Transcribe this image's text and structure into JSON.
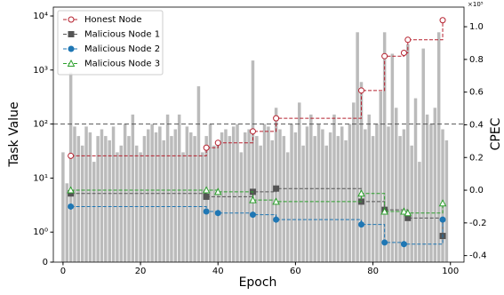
{
  "chart_data": {
    "type": "bar-line-dual",
    "x_label": "Epoch",
    "y_label": "Task Value",
    "y2_label": "CPEC",
    "y2_multiplier": "×10⁵",
    "xlim": [
      -2.5,
      103.5
    ],
    "xticks": [
      0,
      20,
      40,
      60,
      80,
      100
    ],
    "yscale": "symlog",
    "linthresh": 1,
    "linscale": 0.5,
    "ylim": [
      0,
      14600
    ],
    "yticks": [
      0,
      {
        "value": 1,
        "label": "10⁰"
      },
      {
        "value": 10,
        "label": "10¹"
      },
      {
        "value": 100,
        "label": "10²"
      },
      {
        "value": 1000,
        "label": "10³"
      },
      {
        "value": 10000,
        "label": "10⁴"
      }
    ],
    "y2lim": [
      -0.44,
      1.12
    ],
    "y2ticks": [
      -0.4,
      -0.2,
      0.0,
      0.2,
      0.4,
      0.6,
      0.8,
      1.0
    ],
    "hline": 100,
    "legend": "upper-left",
    "bars": {
      "color": "#bbbbbb",
      "x": [
        0,
        1,
        2,
        3,
        4,
        5,
        6,
        7,
        8,
        9,
        10,
        11,
        12,
        13,
        14,
        15,
        16,
        17,
        18,
        19,
        20,
        21,
        22,
        23,
        24,
        25,
        26,
        27,
        28,
        29,
        30,
        31,
        32,
        33,
        34,
        35,
        36,
        37,
        38,
        39,
        40,
        41,
        42,
        43,
        44,
        45,
        46,
        47,
        48,
        49,
        50,
        51,
        52,
        53,
        54,
        55,
        56,
        57,
        58,
        59,
        60,
        61,
        62,
        63,
        64,
        65,
        66,
        67,
        68,
        69,
        70,
        71,
        72,
        73,
        74,
        75,
        76,
        77,
        78,
        79,
        80,
        81,
        82,
        83,
        84,
        85,
        86,
        87,
        88,
        89,
        90,
        91,
        92,
        93,
        94,
        95,
        96,
        97,
        98,
        99
      ],
      "values": [
        30,
        8,
        900,
        90,
        60,
        40,
        90,
        70,
        20,
        60,
        80,
        60,
        50,
        90,
        30,
        40,
        100,
        60,
        150,
        40,
        30,
        60,
        80,
        100,
        70,
        90,
        50,
        150,
        60,
        80,
        150,
        30,
        90,
        70,
        60,
        500,
        30,
        60,
        100,
        40,
        50,
        70,
        80,
        60,
        90,
        100,
        30,
        70,
        80,
        1500,
        60,
        40,
        100,
        90,
        50,
        200,
        80,
        60,
        30,
        100,
        70,
        250,
        40,
        90,
        150,
        60,
        100,
        80,
        40,
        70,
        150,
        60,
        90,
        50,
        100,
        250,
        5000,
        600,
        80,
        150,
        60,
        100,
        400,
        5000,
        90,
        2000,
        200,
        60,
        80,
        3000,
        40,
        300,
        20,
        2500,
        150,
        100,
        200,
        5000,
        80,
        50
      ]
    },
    "series": [
      {
        "name": "Honest Node",
        "color": "#b5202e",
        "marker": "circle-open",
        "x": [
          2,
          37,
          40,
          49,
          55,
          77,
          83,
          88,
          89,
          98
        ],
        "values": [
          0.21,
          0.26,
          0.29,
          0.36,
          0.44,
          0.61,
          0.82,
          0.84,
          0.92,
          1.04
        ],
        "axis": "y2",
        "drawstyle": "steps-post"
      },
      {
        "name": "Malicious Node 1",
        "color": "#555555",
        "marker": "square",
        "x": [
          2,
          37,
          49,
          55,
          77,
          83,
          89,
          98
        ],
        "values": [
          -0.02,
          -0.04,
          -0.01,
          0.01,
          -0.07,
          -0.12,
          -0.17,
          -0.28
        ],
        "axis": "y2",
        "drawstyle": "steps-post"
      },
      {
        "name": "Malicious Node 2",
        "color": "#1f77b4",
        "marker": "circle",
        "x": [
          2,
          37,
          40,
          49,
          55,
          77,
          83,
          88,
          98
        ],
        "values": [
          -0.1,
          -0.13,
          -0.14,
          -0.15,
          -0.18,
          -0.21,
          -0.32,
          -0.33,
          -0.18
        ],
        "axis": "y2",
        "drawstyle": "steps-post"
      },
      {
        "name": "Malicious Node 3",
        "color": "#2ca02c",
        "marker": "triangle-open",
        "x": [
          2,
          37,
          40,
          49,
          55,
          77,
          83,
          88,
          89,
          98
        ],
        "values": [
          0.0,
          0.0,
          -0.01,
          -0.06,
          -0.07,
          -0.02,
          -0.13,
          -0.13,
          -0.14,
          -0.08
        ],
        "axis": "y2",
        "drawstyle": "steps-post"
      }
    ]
  }
}
